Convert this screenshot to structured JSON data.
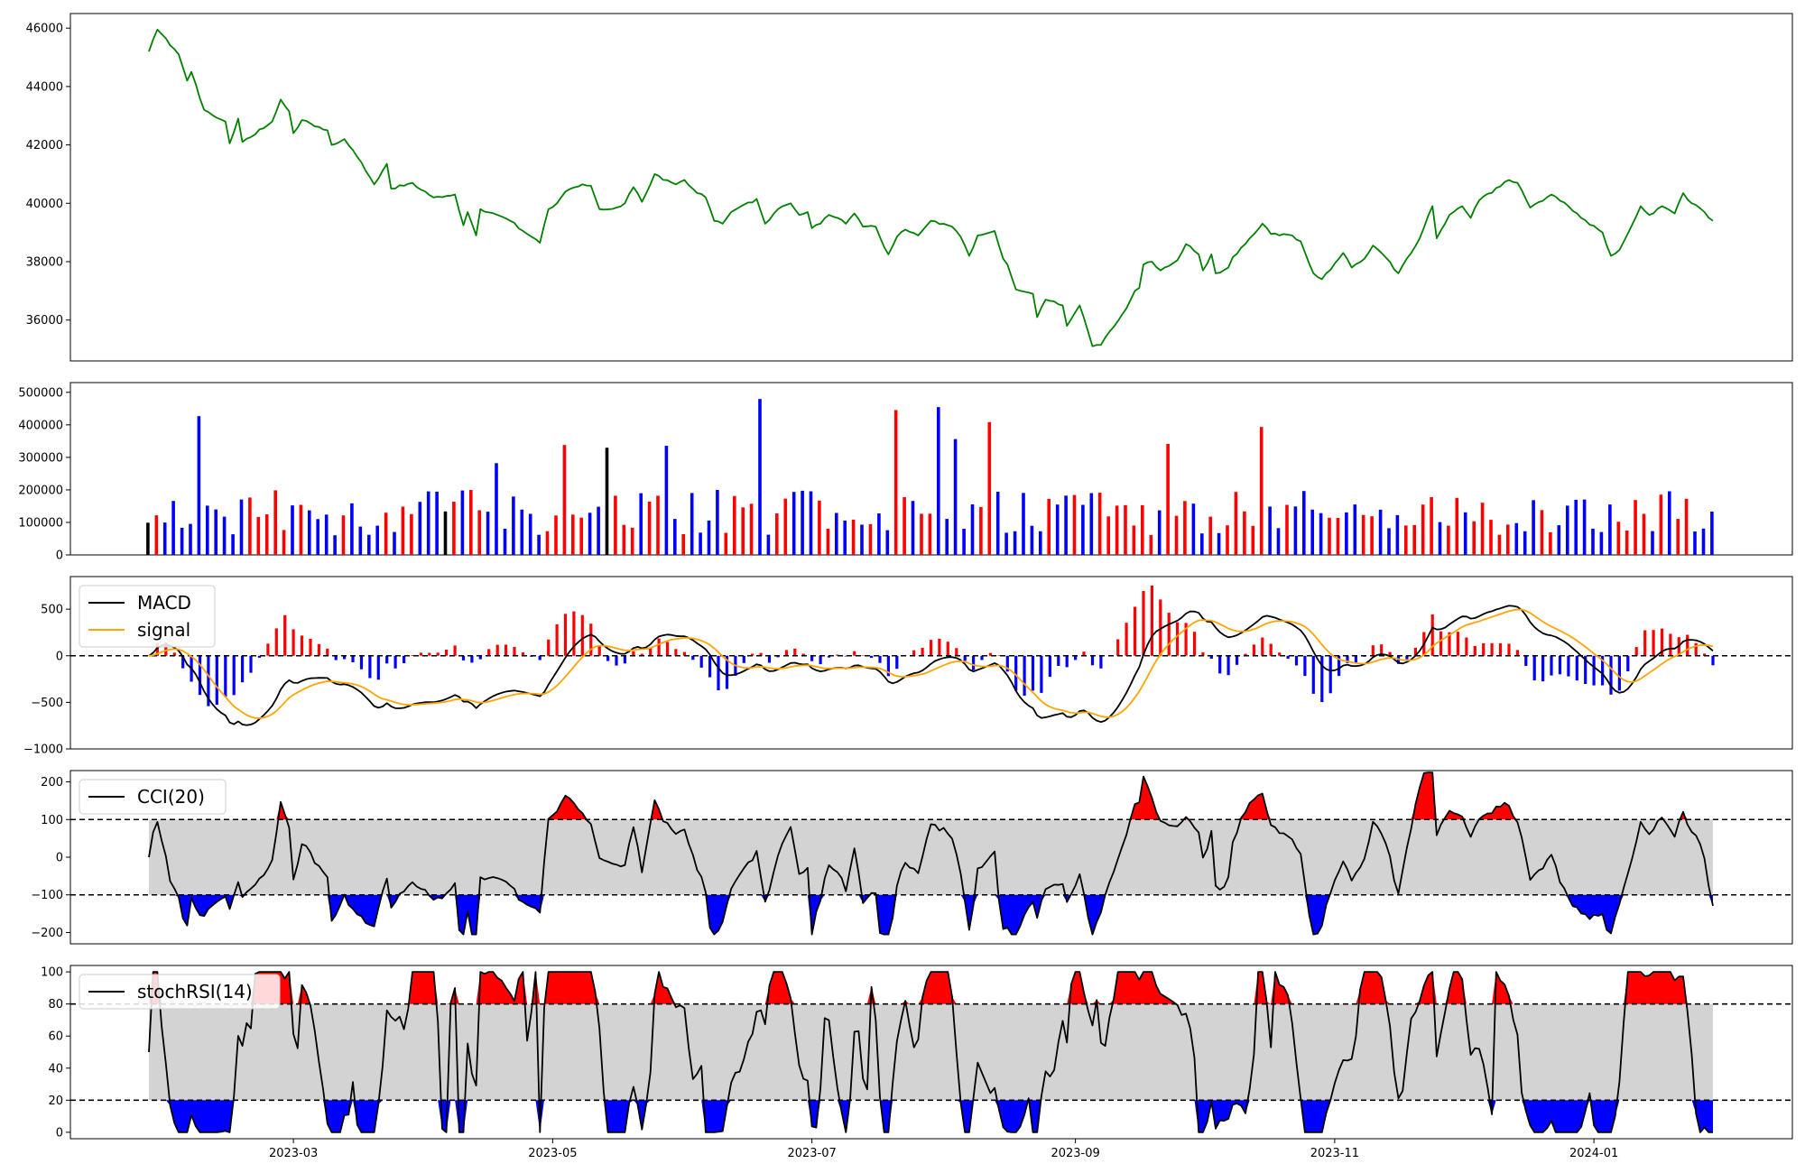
{
  "chart_data": [
    {
      "type": "line",
      "panel": "price",
      "color": "#008000",
      "ylim": [
        34600,
        46500
      ],
      "yticks": [
        36000,
        38000,
        40000,
        42000,
        44000,
        46000
      ],
      "ytick_labels": [
        "36000",
        "38000",
        "40000",
        "42000",
        "44000",
        "46000"
      ],
      "x_start": "2023-01-26",
      "x_end": "2024-01-29",
      "xticks": [
        "2023-03-01",
        "2023-05-01",
        "2023-07-01",
        "2023-09-01",
        "2023-11-01",
        "2024-01-01"
      ],
      "xtick_labels": [
        "2023-03",
        "2023-05",
        "2023-07",
        "2023-09",
        "2023-11",
        "2024-01"
      ],
      "keypoints": [
        [
          "2023-01-26",
          45200
        ],
        [
          "2023-01-28",
          45950
        ],
        [
          "2023-02-02",
          45100
        ],
        [
          "2023-02-04",
          44200
        ],
        [
          "2023-02-05",
          44500
        ],
        [
          "2023-02-08",
          43200
        ],
        [
          "2023-02-13",
          42800
        ],
        [
          "2023-02-14",
          42050
        ],
        [
          "2023-02-16",
          42900
        ],
        [
          "2023-02-17",
          42100
        ],
        [
          "2023-02-24",
          42800
        ],
        [
          "2023-02-26",
          43550
        ],
        [
          "2023-02-28",
          43150
        ],
        [
          "2023-03-01",
          42400
        ],
        [
          "2023-03-03",
          42850
        ],
        [
          "2023-03-09",
          42500
        ],
        [
          "2023-03-10",
          42000
        ],
        [
          "2023-03-13",
          42200
        ],
        [
          "2023-03-17",
          41400
        ],
        [
          "2023-03-20",
          40650
        ],
        [
          "2023-03-23",
          41350
        ],
        [
          "2023-03-24",
          40500
        ],
        [
          "2023-03-29",
          40700
        ],
        [
          "2023-04-03",
          40200
        ],
        [
          "2023-04-06",
          40250
        ],
        [
          "2023-04-08",
          40300
        ],
        [
          "2023-04-10",
          39250
        ],
        [
          "2023-04-11",
          39700
        ],
        [
          "2023-04-13",
          38900
        ],
        [
          "2023-04-14",
          39800
        ],
        [
          "2023-04-18",
          39600
        ],
        [
          "2023-04-21",
          39400
        ],
        [
          "2023-04-25",
          38950
        ],
        [
          "2023-04-28",
          38650
        ],
        [
          "2023-04-30",
          39800
        ],
        [
          "2023-05-02",
          40000
        ],
        [
          "2023-05-04",
          40400
        ],
        [
          "2023-05-08",
          40650
        ],
        [
          "2023-05-10",
          40600
        ],
        [
          "2023-05-12",
          39800
        ],
        [
          "2023-05-16",
          39850
        ],
        [
          "2023-05-18",
          40000
        ],
        [
          "2023-05-20",
          40550
        ],
        [
          "2023-05-22",
          40050
        ],
        [
          "2023-05-25",
          41000
        ],
        [
          "2023-05-27",
          40800
        ],
        [
          "2023-05-30",
          40650
        ],
        [
          "2023-06-01",
          40800
        ],
        [
          "2023-06-04",
          40350
        ],
        [
          "2023-06-06",
          40200
        ],
        [
          "2023-06-08",
          39400
        ],
        [
          "2023-06-10",
          39300
        ],
        [
          "2023-06-12",
          39700
        ],
        [
          "2023-06-18",
          40150
        ],
        [
          "2023-06-20",
          39300
        ],
        [
          "2023-06-23",
          39800
        ],
        [
          "2023-06-26",
          40000
        ],
        [
          "2023-06-28",
          39600
        ],
        [
          "2023-06-30",
          39700
        ],
        [
          "2023-07-01",
          39150
        ],
        [
          "2023-07-03",
          39300
        ],
        [
          "2023-07-05",
          39600
        ],
        [
          "2023-07-07",
          39500
        ],
        [
          "2023-07-09",
          39300
        ],
        [
          "2023-07-11",
          39650
        ],
        [
          "2023-07-13",
          39200
        ],
        [
          "2023-07-16",
          39200
        ],
        [
          "2023-07-18",
          38500
        ],
        [
          "2023-07-19",
          38250
        ],
        [
          "2023-07-21",
          38850
        ],
        [
          "2023-07-23",
          39100
        ],
        [
          "2023-07-26",
          38900
        ],
        [
          "2023-07-29",
          39400
        ],
        [
          "2023-08-03",
          39200
        ],
        [
          "2023-08-05",
          38850
        ],
        [
          "2023-08-07",
          38200
        ],
        [
          "2023-08-09",
          38900
        ],
        [
          "2023-08-13",
          39050
        ],
        [
          "2023-08-15",
          38100
        ],
        [
          "2023-08-16",
          37900
        ],
        [
          "2023-08-18",
          37050
        ],
        [
          "2023-08-22",
          36900
        ],
        [
          "2023-08-23",
          36100
        ],
        [
          "2023-08-25",
          36700
        ],
        [
          "2023-08-29",
          36500
        ],
        [
          "2023-08-30",
          35800
        ],
        [
          "2023-09-02",
          36500
        ],
        [
          "2023-09-05",
          35100
        ],
        [
          "2023-09-07",
          35150
        ],
        [
          "2023-09-09",
          35600
        ],
        [
          "2023-09-13",
          36400
        ],
        [
          "2023-09-15",
          37000
        ],
        [
          "2023-09-16",
          37100
        ],
        [
          "2023-09-17",
          37900
        ],
        [
          "2023-09-19",
          38000
        ],
        [
          "2023-09-21",
          37700
        ],
        [
          "2023-09-22",
          37800
        ],
        [
          "2023-09-25",
          38050
        ],
        [
          "2023-09-27",
          38600
        ],
        [
          "2023-09-30",
          38250
        ],
        [
          "2023-10-01",
          37700
        ],
        [
          "2023-10-03",
          38250
        ],
        [
          "2023-10-04",
          37600
        ],
        [
          "2023-10-07",
          37800
        ],
        [
          "2023-10-08",
          38150
        ],
        [
          "2023-10-12",
          38800
        ],
        [
          "2023-10-15",
          39300
        ],
        [
          "2023-10-17",
          38950
        ],
        [
          "2023-10-22",
          38900
        ],
        [
          "2023-10-24",
          38700
        ],
        [
          "2023-10-27",
          37600
        ],
        [
          "2023-10-29",
          37400
        ],
        [
          "2023-11-03",
          38300
        ],
        [
          "2023-11-05",
          37800
        ],
        [
          "2023-11-08",
          38100
        ],
        [
          "2023-11-10",
          38550
        ],
        [
          "2023-11-12",
          38300
        ],
        [
          "2023-11-16",
          37600
        ],
        [
          "2023-11-21",
          38800
        ],
        [
          "2023-11-24",
          39900
        ],
        [
          "2023-11-25",
          38800
        ],
        [
          "2023-11-28",
          39600
        ],
        [
          "2023-12-01",
          39900
        ],
        [
          "2023-12-03",
          39500
        ],
        [
          "2023-12-05",
          40100
        ],
        [
          "2023-12-12",
          40800
        ],
        [
          "2023-12-14",
          40700
        ],
        [
          "2023-12-17",
          39850
        ],
        [
          "2023-12-22",
          40300
        ],
        [
          "2023-12-26",
          39900
        ],
        [
          "2023-12-29",
          39500
        ],
        [
          "2024-01-03",
          39000
        ],
        [
          "2024-01-05",
          38200
        ],
        [
          "2024-01-07",
          38400
        ],
        [
          "2024-01-12",
          39900
        ],
        [
          "2024-01-14",
          39600
        ],
        [
          "2024-01-17",
          39900
        ],
        [
          "2024-01-20",
          39650
        ],
        [
          "2024-01-22",
          40350
        ],
        [
          "2024-01-24",
          40000
        ],
        [
          "2024-01-27",
          39700
        ],
        [
          "2024-01-29",
          39400
        ]
      ]
    },
    {
      "type": "bar",
      "panel": "volume",
      "ylim": [
        0,
        530000
      ],
      "yticks": [
        0,
        100000,
        200000,
        300000,
        400000,
        500000
      ],
      "ytick_labels": [
        "0",
        "100000",
        "200000",
        "300000",
        "400000",
        "500000"
      ],
      "colors": {
        "up": "#ff0000",
        "down": "#0000ff",
        "flat": "#000000"
      }
    },
    {
      "type": "line",
      "panel": "macd",
      "ylim": [
        -1000,
        850
      ],
      "yticks": [
        -1000,
        -500,
        0,
        500
      ],
      "ytick_labels": [
        "−1000",
        "−500",
        "0",
        "500"
      ],
      "series": [
        {
          "name": "MACD",
          "color": "#000000"
        },
        {
          "name": "signal",
          "color": "#ffa500"
        }
      ],
      "histogram_colors": {
        "positive": "#ff0000",
        "negative": "#0000ff"
      }
    },
    {
      "type": "area",
      "panel": "cci",
      "ylim": [
        -230,
        230
      ],
      "yticks": [
        -200,
        -100,
        0,
        100,
        200
      ],
      "ytick_labels": [
        "−200",
        "−100",
        "0",
        "100",
        "200"
      ],
      "thresholds": [
        -100,
        100
      ],
      "series": [
        {
          "name": "CCI(20)",
          "color": "#000000"
        }
      ],
      "fill_colors": {
        "band": "#d3d3d3",
        "above": "#ff0000",
        "below": "#0000ff"
      }
    },
    {
      "type": "area",
      "panel": "stochrsi",
      "ylim": [
        -4,
        104
      ],
      "yticks": [
        0,
        20,
        40,
        60,
        80,
        100
      ],
      "ytick_labels": [
        "0",
        "20",
        "40",
        "60",
        "80",
        "100"
      ],
      "thresholds": [
        20,
        80
      ],
      "series": [
        {
          "name": "stochRSI(14)",
          "color": "#000000"
        }
      ],
      "fill_colors": {
        "band": "#d3d3d3",
        "above": "#ff0000",
        "below": "#0000ff"
      }
    }
  ]
}
